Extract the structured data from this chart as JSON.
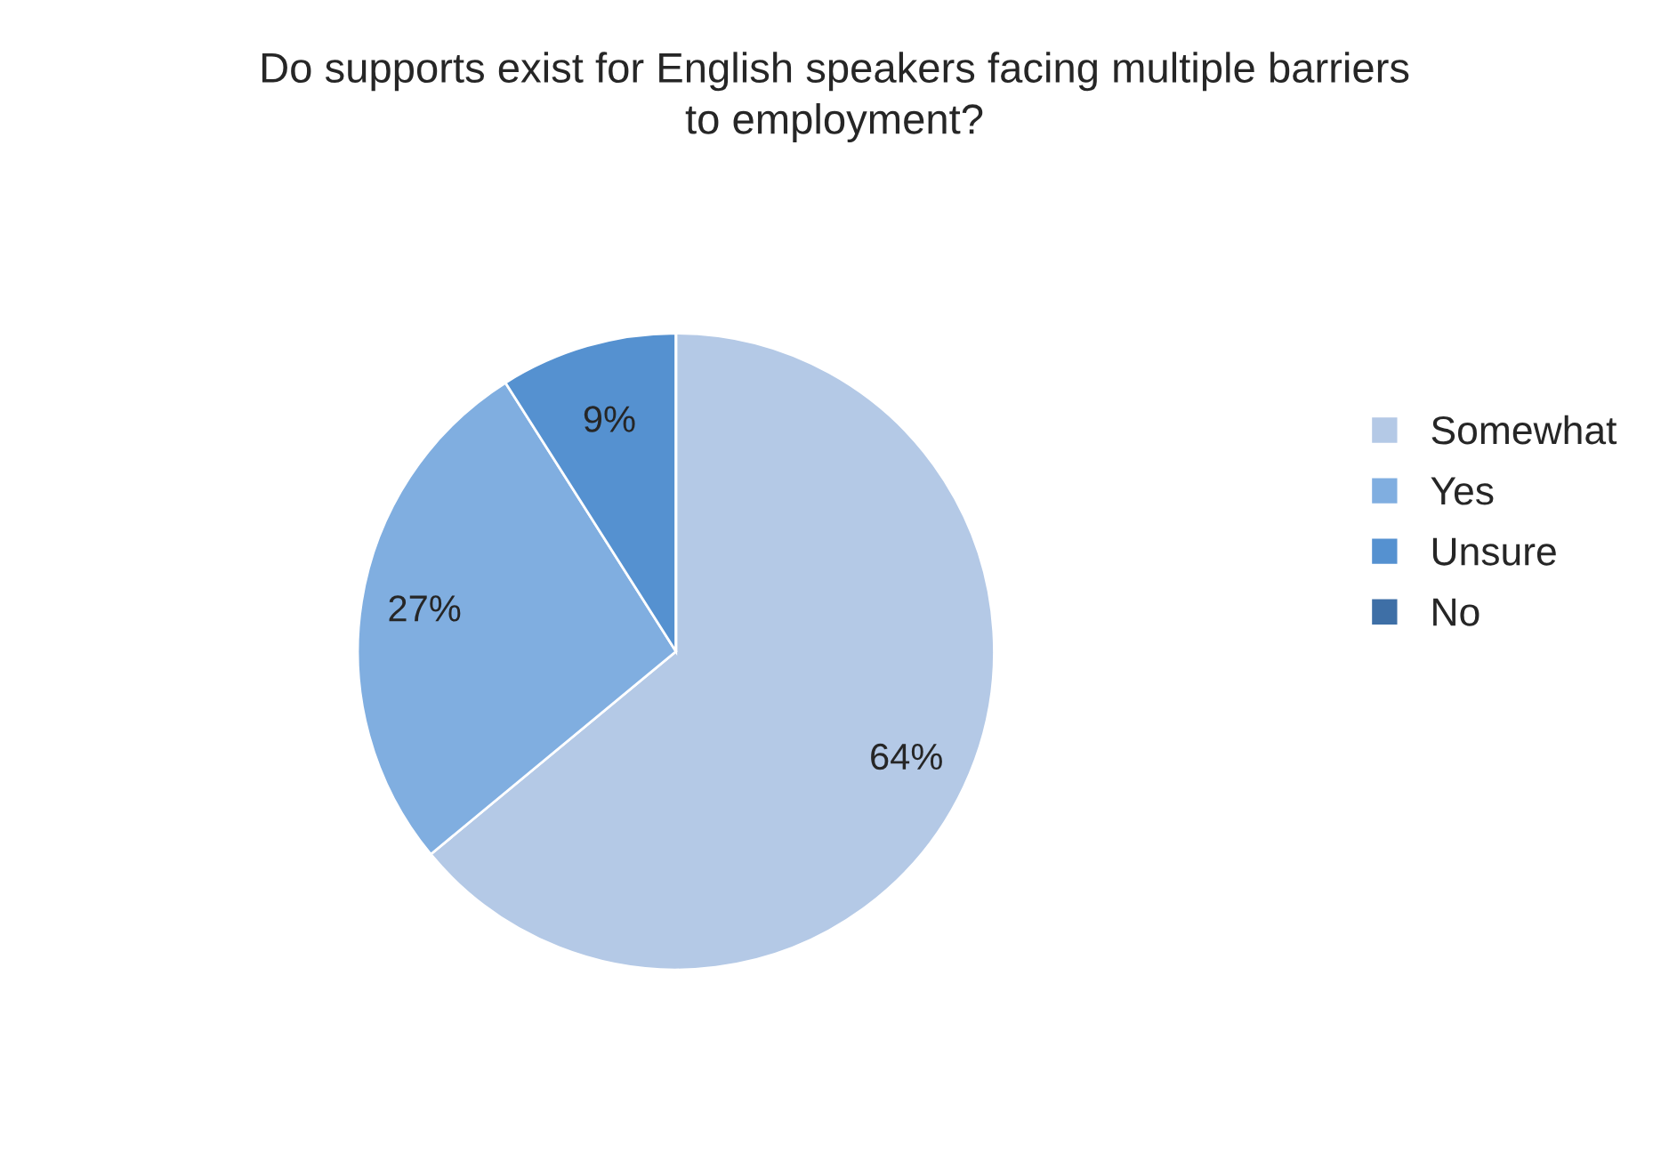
{
  "chart_data": {
    "type": "pie",
    "title": "Do supports exist for English speakers facing multiple barriers\nto employment?",
    "categories": [
      "Somewhat",
      "Yes",
      "Unsure",
      "No"
    ],
    "values": [
      64,
      27,
      9,
      0
    ],
    "value_labels": [
      "64%",
      "27%",
      "9%",
      null
    ],
    "colors": [
      "#b4c9e6",
      "#80aee0",
      "#5591d0",
      "#3e6fa6"
    ],
    "legend": "right"
  }
}
